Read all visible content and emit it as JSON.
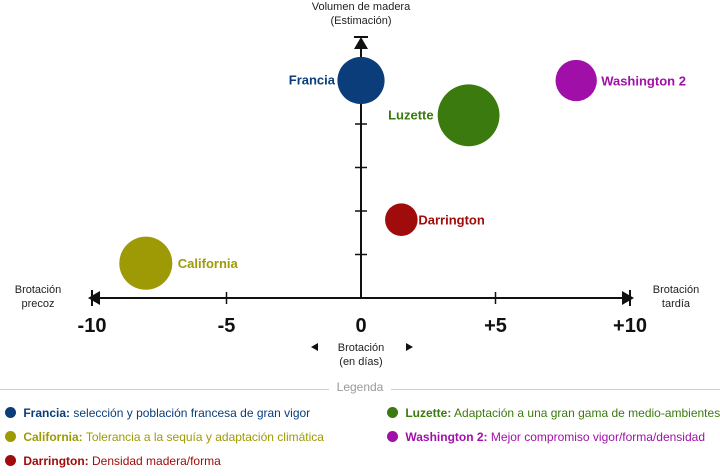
{
  "chart_data": {
    "type": "scatter",
    "ylabel": [
      "Volumen de madera",
      "(Estimación)"
    ],
    "xlabel": [
      "Brotación",
      "(en días)"
    ],
    "x_left_label": [
      "Brotación",
      "precoz"
    ],
    "x_right_label": [
      "Brotación",
      "tardía"
    ],
    "x_ticks": [
      -10,
      -5,
      0,
      5,
      10
    ],
    "x_tick_labels": [
      "-10",
      "-5",
      "0",
      "+5",
      "+10"
    ],
    "xlim": [
      -10,
      10
    ],
    "ylim": [
      0,
      6
    ],
    "y_ticks": [
      1,
      2,
      3,
      4,
      5,
      6
    ],
    "series": [
      {
        "name": "Francia",
        "x": 0,
        "y": 5,
        "size": 2,
        "color": "#0a3d7a"
      },
      {
        "name": "Luzette",
        "x": 4,
        "y": 4.2,
        "size": 3,
        "color": "#3b7a0e"
      },
      {
        "name": "Washington 2",
        "x": 8,
        "y": 5,
        "size": 1.6,
        "color": "#a010a8"
      },
      {
        "name": "Darrington",
        "x": 1.5,
        "y": 1.8,
        "size": 1,
        "color": "#a00c0c"
      },
      {
        "name": "California",
        "x": -8,
        "y": 0.8,
        "size": 2.4,
        "color": "#9e9a06"
      }
    ]
  },
  "legend": {
    "title": "Legenda",
    "items": [
      {
        "name": "Francia:",
        "text": "selección y población francesa de gran vigor",
        "color": "#0a3d7a"
      },
      {
        "name": "Luzette:",
        "text": "Adaptación a una gran gama de medio-ambientes",
        "color": "#3b7a0e"
      },
      {
        "name": "California:",
        "text": "Tolerancia a la sequía y adaptación climática",
        "color": "#9e9a06"
      },
      {
        "name": "Washington 2:",
        "text": "Mejor compromiso vigor/forma/densidad",
        "color": "#a010a8"
      },
      {
        "name": "Darrington:",
        "text": "Densidad madera/forma",
        "color": "#a00c0c"
      }
    ]
  }
}
